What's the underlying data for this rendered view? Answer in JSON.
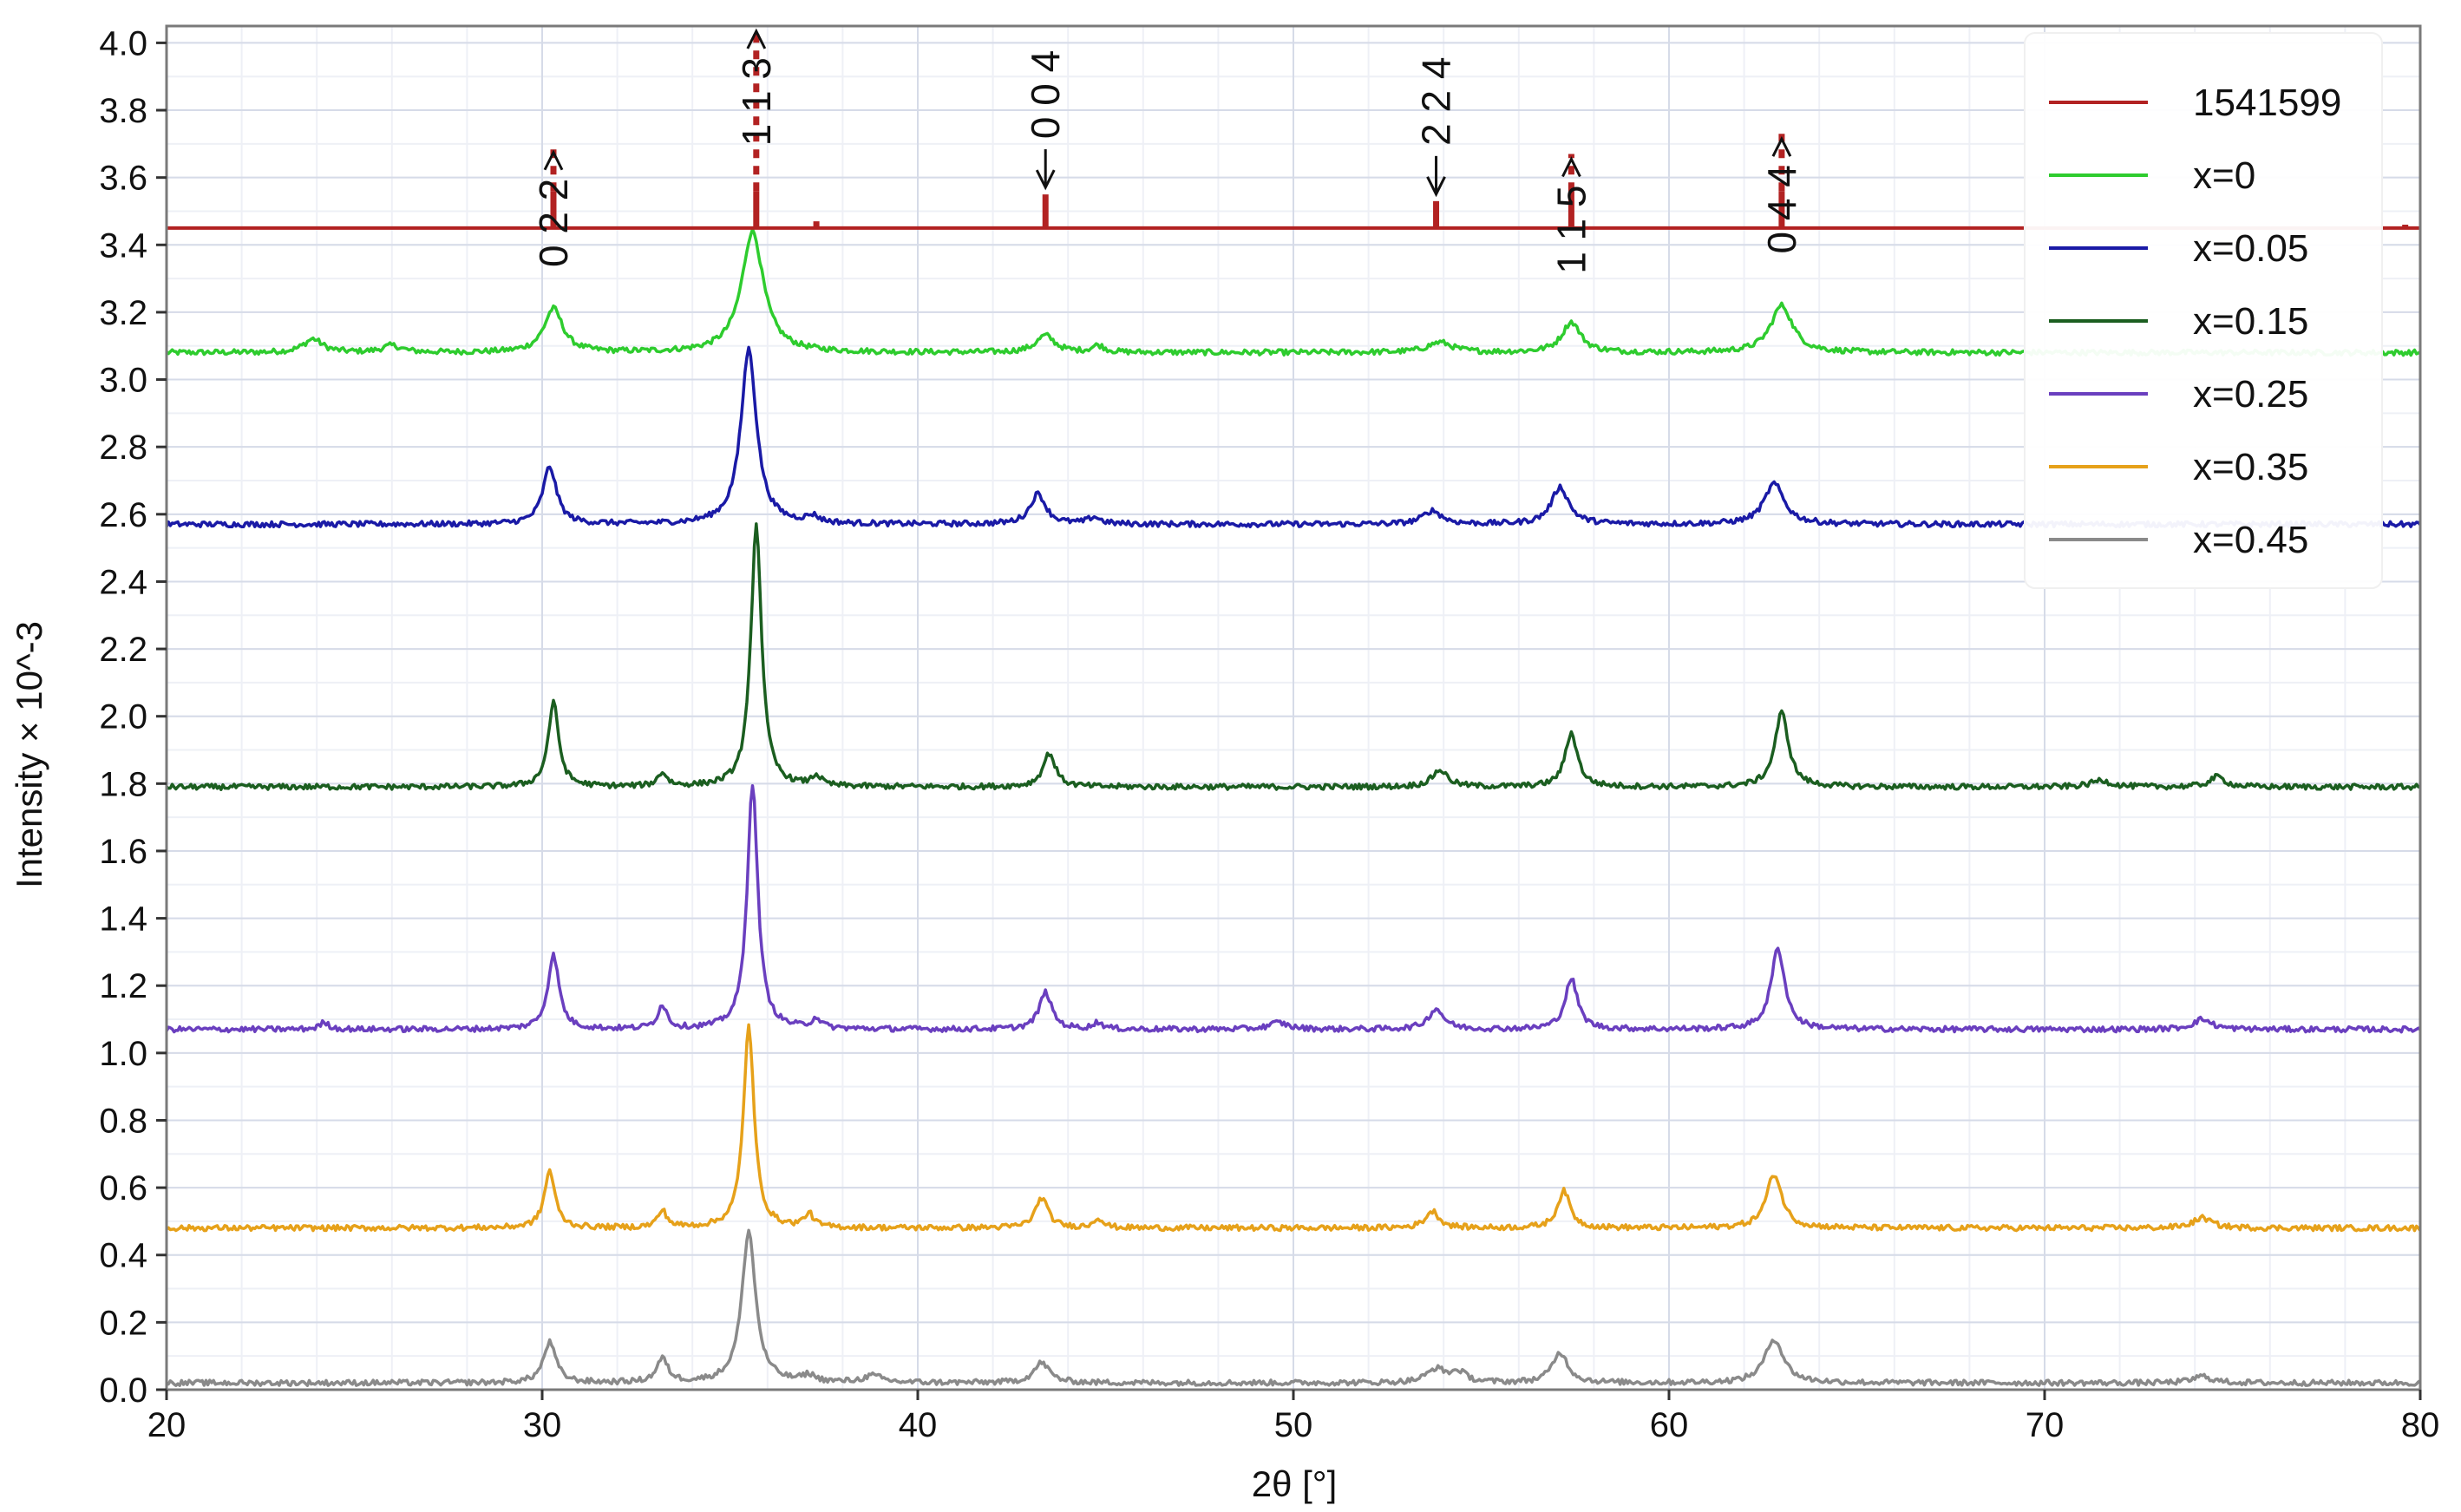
{
  "chart_data": {
    "type": "line",
    "title": "",
    "xlabel": "2θ [°]",
    "ylabel": "Intensity × 10^-3",
    "xlim": [
      20,
      80
    ],
    "ylim": [
      0,
      4.05
    ],
    "x_ticks": [
      20,
      30,
      40,
      50,
      60,
      70,
      80
    ],
    "y_ticks": [
      0.0,
      0.2,
      0.4,
      0.6,
      0.8,
      1.0,
      1.2,
      1.4,
      1.6,
      1.8,
      2.0,
      2.2,
      2.4,
      2.6,
      2.8,
      3.0,
      3.2,
      3.4,
      3.6,
      3.8,
      4.0
    ],
    "grid": true,
    "legend_position": "top-right",
    "reference": {
      "name": "1541599",
      "color": "#b22222",
      "baseline": 3.45,
      "sticks": [
        {
          "x": 30.3,
          "top": 3.69,
          "label": "0 2 2",
          "arrow": "up"
        },
        {
          "x": 35.7,
          "top": 4.05,
          "label": "1 1 3",
          "arrow": "up"
        },
        {
          "x": 43.4,
          "top": 3.55,
          "label": "0 0 4",
          "arrow": "down"
        },
        {
          "x": 53.8,
          "top": 3.53,
          "label": "2 2 4",
          "arrow": "down"
        },
        {
          "x": 57.4,
          "top": 3.67,
          "label": "1 1 5",
          "arrow": "up"
        },
        {
          "x": 63.0,
          "top": 3.73,
          "label": "0 4 4",
          "arrow": "up"
        },
        {
          "x": 37.3,
          "top": 3.47,
          "label": "",
          "arrow": ""
        },
        {
          "x": 79.6,
          "top": 3.46,
          "label": "",
          "arrow": ""
        }
      ]
    },
    "series": [
      {
        "name": "x=0",
        "color": "#2ecc2e",
        "baseline": 3.08,
        "peaks": [
          [
            23.9,
            0.04,
            0.3
          ],
          [
            26.0,
            0.02,
            0.3
          ],
          [
            30.3,
            0.13,
            0.3
          ],
          [
            35.6,
            0.36,
            0.35
          ],
          [
            43.4,
            0.05,
            0.3
          ],
          [
            44.8,
            0.02,
            0.2
          ],
          [
            53.9,
            0.03,
            0.4
          ],
          [
            57.4,
            0.09,
            0.3
          ],
          [
            63.0,
            0.14,
            0.35
          ]
        ]
      },
      {
        "name": "x=0.05",
        "color": "#1a1aa6",
        "baseline": 2.57,
        "peaks": [
          [
            30.2,
            0.17,
            0.22
          ],
          [
            35.5,
            0.52,
            0.25
          ],
          [
            37.2,
            0.02,
            0.2
          ],
          [
            43.2,
            0.09,
            0.25
          ],
          [
            44.7,
            0.02,
            0.2
          ],
          [
            53.7,
            0.04,
            0.3
          ],
          [
            57.1,
            0.11,
            0.28
          ],
          [
            62.8,
            0.12,
            0.32
          ]
        ]
      },
      {
        "name": "x=0.15",
        "color": "#1b5e20",
        "baseline": 1.79,
        "peaks": [
          [
            30.3,
            0.25,
            0.17
          ],
          [
            33.2,
            0.04,
            0.15
          ],
          [
            35.7,
            0.78,
            0.17
          ],
          [
            37.3,
            0.03,
            0.15
          ],
          [
            43.5,
            0.1,
            0.2
          ],
          [
            53.9,
            0.05,
            0.25
          ],
          [
            57.4,
            0.16,
            0.2
          ],
          [
            63.0,
            0.22,
            0.22
          ],
          [
            71.5,
            0.02,
            0.3
          ],
          [
            74.6,
            0.03,
            0.25
          ]
        ]
      },
      {
        "name": "x=0.25",
        "color": "#6a3fbf",
        "baseline": 1.07,
        "peaks": [
          [
            24.2,
            0.02,
            0.15
          ],
          [
            30.3,
            0.22,
            0.18
          ],
          [
            33.2,
            0.07,
            0.15
          ],
          [
            35.6,
            0.73,
            0.17
          ],
          [
            37.3,
            0.03,
            0.15
          ],
          [
            43.4,
            0.11,
            0.2
          ],
          [
            44.8,
            0.02,
            0.15
          ],
          [
            49.6,
            0.02,
            0.3
          ],
          [
            53.8,
            0.06,
            0.25
          ],
          [
            57.4,
            0.15,
            0.2
          ],
          [
            62.9,
            0.24,
            0.22
          ],
          [
            74.2,
            0.03,
            0.3
          ]
        ]
      },
      {
        "name": "x=0.35",
        "color": "#e6a11a",
        "baseline": 0.48,
        "peaks": [
          [
            30.2,
            0.17,
            0.17
          ],
          [
            33.2,
            0.05,
            0.15
          ],
          [
            35.5,
            0.6,
            0.17
          ],
          [
            37.1,
            0.04,
            0.15
          ],
          [
            43.3,
            0.09,
            0.2
          ],
          [
            44.8,
            0.03,
            0.15
          ],
          [
            53.7,
            0.05,
            0.22
          ],
          [
            57.2,
            0.11,
            0.2
          ],
          [
            62.8,
            0.16,
            0.25
          ],
          [
            74.2,
            0.03,
            0.3
          ]
        ]
      },
      {
        "name": "x=0.45",
        "color": "#8a8a8a",
        "baseline": 0.02,
        "peaks": [
          [
            30.2,
            0.12,
            0.2
          ],
          [
            33.2,
            0.07,
            0.18
          ],
          [
            35.5,
            0.45,
            0.22
          ],
          [
            37.1,
            0.02,
            0.2
          ],
          [
            38.8,
            0.02,
            0.3
          ],
          [
            43.3,
            0.06,
            0.25
          ],
          [
            53.8,
            0.04,
            0.3
          ],
          [
            54.4,
            0.03,
            0.25
          ],
          [
            57.1,
            0.09,
            0.25
          ],
          [
            62.8,
            0.13,
            0.3
          ],
          [
            74.2,
            0.02,
            0.3
          ]
        ]
      }
    ]
  }
}
